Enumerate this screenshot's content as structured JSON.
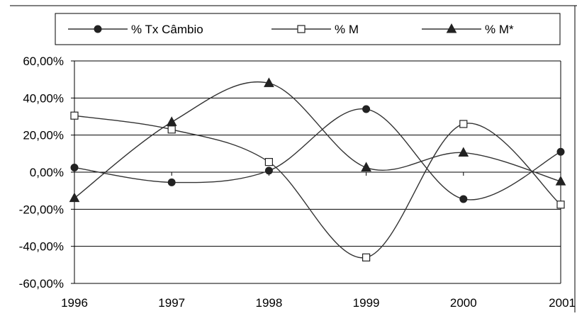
{
  "chart_data": {
    "type": "line",
    "smooth": true,
    "x": [
      "1996",
      "1997",
      "1998",
      "1999",
      "2000",
      "2001"
    ],
    "ylim": [
      -60,
      60
    ],
    "ytick_step": 20,
    "ytick_labels": [
      "60,00%",
      "40,00%",
      "20,00%",
      "0,00%",
      "-20,00%",
      "-40,00%",
      "-60,00%"
    ],
    "grid": true,
    "legend_position": "top",
    "series": [
      {
        "name": "% Tx Câmbio",
        "marker": "circle",
        "values": [
          2.5,
          -5.5,
          0.8,
          34.0,
          -14.5,
          11.0
        ]
      },
      {
        "name": "% M",
        "marker": "square",
        "values": [
          30.5,
          23.0,
          5.5,
          -46.0,
          26.0,
          -17.5
        ]
      },
      {
        "name": "% M*",
        "marker": "triangle",
        "values": [
          -14.0,
          27.0,
          48.0,
          2.5,
          10.5,
          -5.0
        ]
      }
    ],
    "colors": {
      "line": "#333333",
      "marker": "#222222",
      "axis": "#000000",
      "grid": "#000000"
    }
  }
}
